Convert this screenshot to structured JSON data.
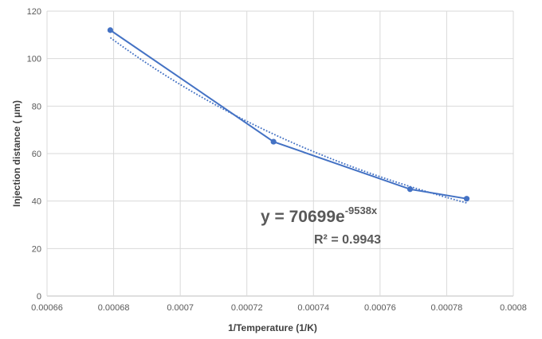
{
  "chart_data": {
    "type": "scatter",
    "title": "",
    "xlabel": "1/Temperature (1/K)",
    "ylabel": "Injection distance ( μm)",
    "xlim": [
      0.00066,
      0.0008
    ],
    "ylim": [
      0,
      120
    ],
    "x_ticks": [
      0.00066,
      0.00068,
      0.0007,
      0.00072,
      0.00074,
      0.00076,
      0.00078,
      0.0008
    ],
    "x_tick_labels": [
      "0.00066",
      "0.00068",
      "0.0007",
      "0.00072",
      "0.00074",
      "0.00076",
      "0.00078",
      "0.0008"
    ],
    "y_ticks": [
      0,
      20,
      40,
      60,
      80,
      100,
      120
    ],
    "y_tick_labels": [
      "0",
      "20",
      "40",
      "60",
      "80",
      "100",
      "120"
    ],
    "grid": true,
    "legend": "none",
    "series": [
      {
        "color": "#4472C4",
        "marker": "circle",
        "line": "solid",
        "x": [
          0.000679,
          0.000728,
          0.000769,
          0.000786
        ],
        "y": [
          112,
          65,
          45,
          41
        ]
      }
    ],
    "trendline": {
      "type": "exponential",
      "a": 70699,
      "b": -9538,
      "style": "dotted",
      "color": "#4472C4",
      "equation_prefix": "y = 70699e",
      "equation_exponent": "-9538x",
      "r2_label": "R² = 0.9943"
    }
  }
}
